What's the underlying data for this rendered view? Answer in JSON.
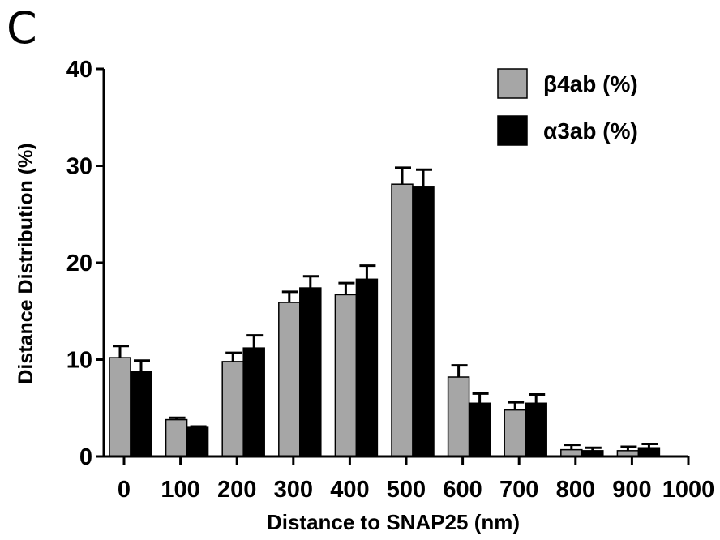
{
  "figure": {
    "panel_label": "C"
  },
  "chart_data": {
    "type": "bar",
    "xlabel": "Distance to SNAP25 (nm)",
    "ylabel": "Distance Distribution (%)",
    "ylim": [
      0,
      40
    ],
    "yticks": [
      0,
      10,
      20,
      30,
      40
    ],
    "xticks": [
      "0",
      "100",
      "200",
      "300",
      "400",
      "500",
      "600",
      "700",
      "800",
      "900",
      "1000"
    ],
    "categories": [
      "0",
      "100",
      "200",
      "300",
      "400",
      "500",
      "600",
      "700",
      "800",
      "900"
    ],
    "legend_position": "top-right",
    "grid": false,
    "series": [
      {
        "name": "β4ab (%)",
        "color": "#a6a6a6",
        "values": [
          10.2,
          3.8,
          9.8,
          15.9,
          16.7,
          28.1,
          8.2,
          4.8,
          0.7,
          0.6
        ],
        "errors": [
          1.2,
          0.2,
          0.9,
          1.1,
          1.2,
          1.7,
          1.2,
          0.8,
          0.5,
          0.4
        ]
      },
      {
        "name": "α3ab (%)",
        "color": "#000000",
        "values": [
          8.8,
          3.0,
          11.2,
          17.4,
          18.3,
          27.8,
          5.5,
          5.5,
          0.6,
          0.9
        ],
        "errors": [
          1.1,
          0.1,
          1.3,
          1.2,
          1.4,
          1.8,
          1.0,
          0.9,
          0.3,
          0.4
        ]
      }
    ]
  }
}
